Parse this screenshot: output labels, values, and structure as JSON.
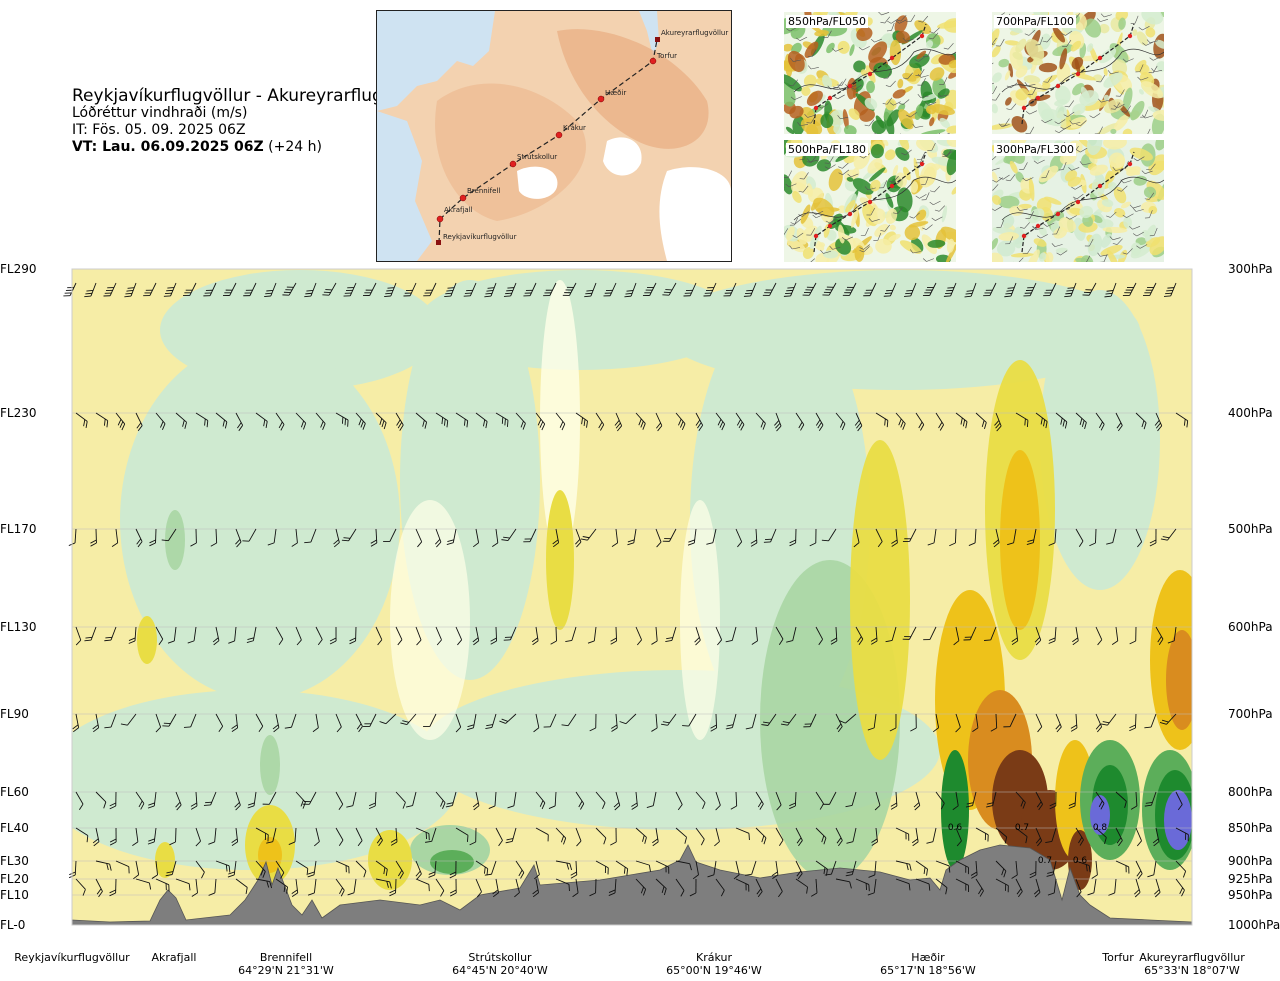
{
  "title": {
    "route": "Reykjavíkurflugvöllur - Akureyrarflugvöllur",
    "quantity": "Lóðréttur vindhraði (m/s)",
    "it": "IT: Fös. 05. 09. 2025 06Z",
    "vt_bold": "VT: Lau. 06.09.2025 06Z",
    "vt_rest": " (+24 h)"
  },
  "overview_map": {
    "waypoints": [
      "Akureyrarflugvöllur",
      "Torfur",
      "Hæðir",
      "Krákur",
      "Strútskollur",
      "Brennifell",
      "Akrafjall",
      "Reykjavíkurflugvöllur"
    ]
  },
  "mini_maps": [
    {
      "label": "850hPa/FL050"
    },
    {
      "label": "700hPa/FL100"
    },
    {
      "label": "500hPa/FL180"
    },
    {
      "label": "300hPa/FL300"
    }
  ],
  "chart_data": {
    "type": "heatmap",
    "variable": "Lóðréttur vindhraði (m/s)",
    "left_axis_labels": [
      "FL290",
      "FL230",
      "FL170",
      "FL130",
      "FL90",
      "FL60",
      "FL40",
      "FL30",
      "FL20",
      "FL10",
      "FL-0"
    ],
    "right_axis_labels": [
      "300hPa",
      "400hPa",
      "500hPa",
      "600hPa",
      "700hPa",
      "800hPa",
      "850hPa",
      "900hPa",
      "925hPa",
      "950hPa",
      "1000hPa"
    ],
    "pressure_levels_hPa": [
      300,
      400,
      500,
      600,
      700,
      800,
      850,
      900,
      925,
      950,
      1000
    ],
    "x_labels": [
      {
        "name": "Reykjavíkurflugvöllur",
        "coord": ""
      },
      {
        "name": "Akrafjall",
        "coord": ""
      },
      {
        "name": "Brennifell",
        "coord": "64°29'N 21°31'W"
      },
      {
        "name": "Strútskollur",
        "coord": "64°45'N 20°40'W"
      },
      {
        "name": "Krákur",
        "coord": "65°00'N 19°46'W"
      },
      {
        "name": "Hæðir",
        "coord": "65°17'N 18°56'W"
      },
      {
        "name": "Torfur",
        "coord": ""
      },
      {
        "name": "Akureyrarflugvöllur",
        "coord": "65°33'N 18°07'W"
      }
    ],
    "contour_labels": [
      "0.6",
      "0.7",
      "0.8",
      "0.7",
      "0.6"
    ],
    "colors": {
      "strong_down": "#6a6ad8",
      "down_2": "#1e8a2e",
      "down_1": "#5cae5a",
      "down_0": "#a9d6a3",
      "weak_down": "#cfead0",
      "neutral": "#ffffe8",
      "weak_up": "#f6eda6",
      "up_1": "#e9dd44",
      "up_2": "#eec21a",
      "up_3": "#d98c1f",
      "strong_up": "#7a3b16",
      "terrain": "#7e7e7e"
    }
  }
}
